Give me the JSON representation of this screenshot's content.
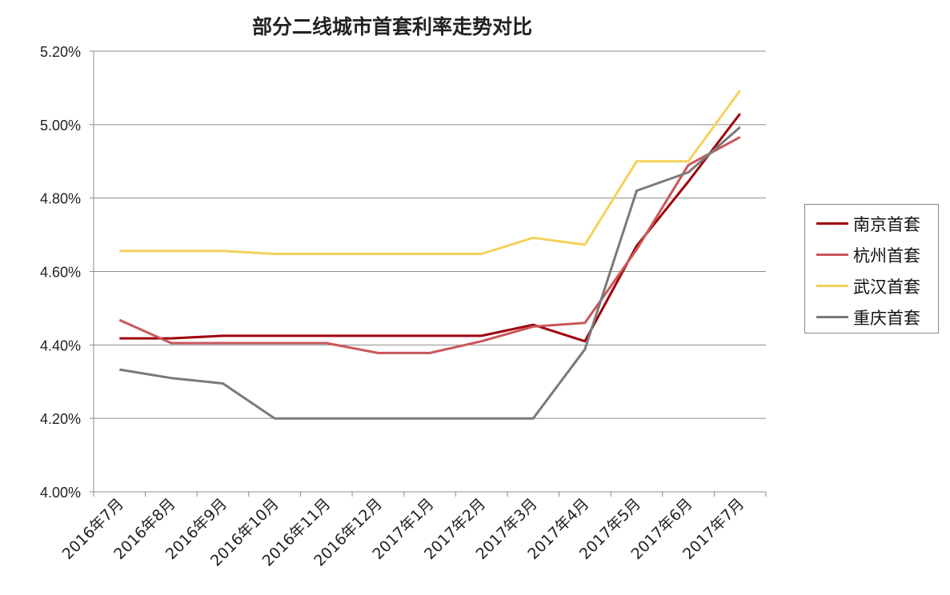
{
  "chart_data": {
    "type": "line",
    "title": "部分二线城市首套利率走势对比",
    "xlabel": "",
    "ylabel": "",
    "ylim": [
      4.0,
      5.2
    ],
    "yticks": [
      "4.00%",
      "4.20%",
      "4.40%",
      "4.60%",
      "4.80%",
      "5.00%",
      "5.20%"
    ],
    "grid": true,
    "legend_position": "right",
    "categories": [
      "2016年7月",
      "2016年8月",
      "2016年9月",
      "2016年10月",
      "2016年11月",
      "2016年12月",
      "2017年1月",
      "2017年2月",
      "2017年3月",
      "2017年4月",
      "2017年5月",
      "2017年6月",
      "2017年7月"
    ],
    "series": [
      {
        "name": "南京首套",
        "color": "#a0000c",
        "values": [
          4.418,
          4.418,
          4.425,
          4.425,
          4.425,
          4.425,
          4.425,
          4.425,
          4.455,
          4.41,
          4.67,
          4.845,
          5.03
        ]
      },
      {
        "name": "杭州首套",
        "color": "#c9575a",
        "values": [
          4.468,
          4.405,
          4.405,
          4.405,
          4.405,
          4.378,
          4.378,
          4.41,
          4.45,
          4.46,
          4.66,
          4.89,
          4.966
        ]
      },
      {
        "name": "武汉首套",
        "color": "#f5d15a",
        "values": [
          4.656,
          4.656,
          4.656,
          4.648,
          4.648,
          4.648,
          4.648,
          4.648,
          4.692,
          4.673,
          4.9,
          4.9,
          5.093
        ]
      },
      {
        "name": "重庆首套",
        "color": "#7a7a7a",
        "values": [
          4.333,
          4.31,
          4.295,
          4.2,
          4.2,
          4.2,
          4.2,
          4.2,
          4.2,
          4.388,
          4.82,
          4.87,
          4.993
        ]
      }
    ]
  }
}
